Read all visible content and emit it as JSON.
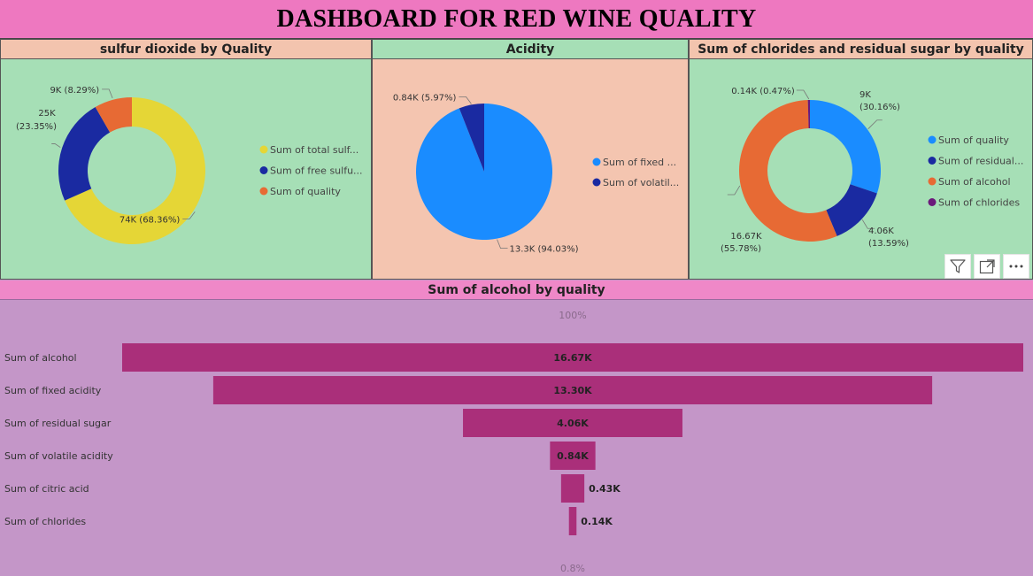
{
  "header": {
    "title": "DASHBOARD FOR  RED WINE QUALITY"
  },
  "colors": {
    "yellow": "#e5d636",
    "navy": "#1a2aa1",
    "orange": "#e76a34",
    "blue": "#1a8cff",
    "purple": "#6b197b",
    "funnel_bar": "#aa2f7a"
  },
  "panels": {
    "sulfur": {
      "title": "sulfur dioxide by Quality"
    },
    "acidity": {
      "title": "Acidity"
    },
    "chlorides": {
      "title": "Sum of chlorides and residual sugar by quality"
    },
    "alcohol": {
      "title": "Sum of alcohol by quality"
    }
  },
  "toolbar": {
    "icons": [
      "filter-icon",
      "focus-mode-icon",
      "more-options-icon"
    ]
  },
  "chart_data": [
    {
      "type": "pie",
      "variant": "donut",
      "title": "sulfur dioxide by Quality",
      "legend_position": "right",
      "legend": [
        "Sum of total sulf...",
        "Sum of free sulfu...",
        "Sum of quality"
      ],
      "slices": [
        {
          "name": "Sum of total sulfur dioxide",
          "value": 74,
          "percent": 68.36,
          "label": "74K (68.36%)",
          "color": "#e5d636"
        },
        {
          "name": "Sum of free sulfur dioxide",
          "value": 25,
          "percent": 23.35,
          "label": "25K (23.35%)",
          "color": "#1a2aa1"
        },
        {
          "name": "Sum of quality",
          "value": 9,
          "percent": 8.29,
          "label": "9K (8.29%)",
          "color": "#e76a34"
        }
      ]
    },
    {
      "type": "pie",
      "title": "Acidity",
      "legend_position": "right",
      "legend": [
        "Sum of fixed ...",
        "Sum of volatil..."
      ],
      "slices": [
        {
          "name": "Sum of fixed acidity",
          "value": 13.3,
          "percent": 94.03,
          "label": "13.3K (94.03%)",
          "color": "#1a8cff"
        },
        {
          "name": "Sum of volatile acidity",
          "value": 0.84,
          "percent": 5.97,
          "label": "0.84K (5.97%)",
          "color": "#1a2aa1"
        }
      ]
    },
    {
      "type": "pie",
      "variant": "donut",
      "title": "Sum of chlorides and residual sugar by quality",
      "legend_position": "right",
      "legend": [
        "Sum of quality",
        "Sum of residual...",
        "Sum of alcohol",
        "Sum of chlorides"
      ],
      "slices": [
        {
          "name": "Sum of quality",
          "value": 9,
          "percent": 30.16,
          "label_top": "9K",
          "label_bottom": "(30.16%)",
          "color": "#1a8cff"
        },
        {
          "name": "Sum of residual sugar",
          "value": 4.06,
          "percent": 13.59,
          "label_top": "4.06K",
          "label_bottom": "(13.59%)",
          "color": "#1a2aa1"
        },
        {
          "name": "Sum of alcohol",
          "value": 16.67,
          "percent": 55.78,
          "label_top": "16.67K",
          "label_bottom": "(55.78%)",
          "color": "#e76a34"
        },
        {
          "name": "Sum of chlorides",
          "value": 0.14,
          "percent": 0.47,
          "label_top": "0.14K (0.47%)",
          "label_bottom": "",
          "color": "#6b197b"
        }
      ]
    },
    {
      "type": "bar",
      "variant": "funnel",
      "title": "Sum of alcohol by quality",
      "top_percent_label": "100%",
      "bottom_percent_label": "0.8%",
      "categories": [
        "Sum of alcohol",
        "Sum of fixed acidity",
        "Sum of residual sugar",
        "Sum of volatile acidity",
        "Sum of citric acid",
        "Sum of chlorides"
      ],
      "values": [
        16.67,
        13.3,
        4.06,
        0.84,
        0.43,
        0.14
      ],
      "value_labels": [
        "16.67K",
        "13.30K",
        "4.06K",
        "0.84K",
        "0.43K",
        "0.14K"
      ]
    }
  ]
}
